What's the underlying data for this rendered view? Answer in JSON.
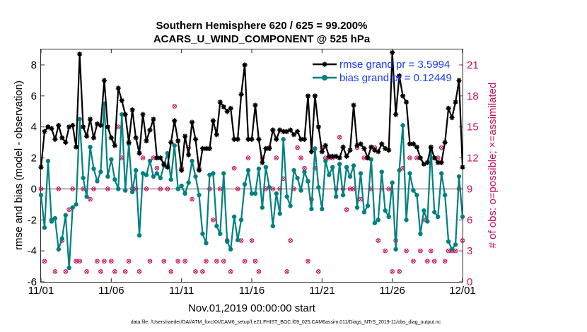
{
  "chart_data": {
    "type": "line",
    "title_line1": "Southern Hemisphere 620 / 625 = 99.200%",
    "title_line2": "ACARS_U_WIND_COMPONENT @ 525 hPa",
    "xlabel": "Nov.01,2019 00:00:00 start",
    "ylabel_left": "rmse and bias (model - observation)",
    "ylabel_right": "# of obs: o=possible; ×=assimilated",
    "footnote": "data file: /Users/raeder/DAI/ATM_forcXX/CAM6_setup/f.e21.FHIST_BGC.f09_025.CAM6assim.011/Diags_NTrS_2019-11/obs_diag_output.nc",
    "xlim": [
      1,
      31
    ],
    "ylim_left": [
      -6,
      9
    ],
    "ylim_right": [
      0,
      22.5
    ],
    "x_tick_values": [
      1,
      6,
      11,
      16,
      21,
      26,
      31
    ],
    "x_tick_labels": [
      "11/01",
      "11/06",
      "11/11",
      "11/16",
      "11/21",
      "11/26",
      "12/01"
    ],
    "y_left_ticks": [
      -6,
      -4,
      -2,
      0,
      2,
      4,
      6,
      8
    ],
    "y_left_tick_labels": [
      "-6",
      "-4",
      "-2",
      "0",
      "2",
      "4",
      "6",
      "8"
    ],
    "y_right_ticks": [
      0,
      3,
      6,
      9,
      12,
      15,
      18,
      21
    ],
    "y_right_tick_labels": [
      "0",
      "3",
      "6",
      "9",
      "12",
      "15",
      "18",
      "21"
    ],
    "legend": {
      "rmse_label": "rmse grand pr = 3.5994",
      "bias_label": "bias grand pr = 0.12449",
      "position": "top-right"
    },
    "colors": {
      "rmse": "#000000",
      "bias": "#008080",
      "obs": "#c8105a",
      "zero_line": "#b0b0b0"
    },
    "rmse_series": {
      "name": "rmse",
      "x": [
        1.0,
        1.25,
        1.5,
        1.75,
        2.0,
        2.25,
        2.5,
        2.75,
        3.0,
        3.25,
        3.5,
        3.75,
        4.0,
        4.25,
        4.5,
        4.75,
        5.0,
        5.25,
        5.5,
        5.75,
        6.0,
        6.25,
        6.5,
        6.75,
        7.0,
        7.25,
        7.5,
        7.75,
        8.0,
        8.25,
        8.5,
        8.75,
        9.0,
        9.25,
        9.5,
        9.75,
        10.0,
        10.25,
        10.5,
        10.75,
        11.0,
        11.25,
        11.5,
        11.75,
        12.0,
        12.25,
        12.5,
        12.75,
        13.0,
        13.25,
        13.5,
        13.75,
        14.0,
        14.25,
        14.5,
        14.75,
        15.0,
        15.25,
        15.5,
        15.75,
        16.0,
        16.25,
        16.5,
        16.75,
        17.0,
        17.25,
        17.5,
        17.75,
        18.0,
        18.25,
        18.5,
        18.75,
        19.0,
        19.25,
        19.5,
        19.75,
        20.0,
        20.25,
        20.5,
        20.75,
        21.0,
        21.25,
        21.5,
        21.75,
        22.0,
        22.25,
        22.5,
        22.75,
        23.0,
        23.25,
        23.5,
        23.75,
        24.0,
        24.25,
        24.5,
        24.75,
        25.0,
        25.25,
        25.5,
        25.75,
        26.0,
        26.25,
        26.5,
        26.75,
        27.0,
        27.25,
        27.5,
        27.75,
        28.0,
        28.25,
        28.5,
        28.75,
        29.0,
        29.25,
        29.5,
        29.75,
        30.0,
        30.25,
        30.5,
        30.75,
        31.0
      ],
      "y": [
        1.4,
        3.7,
        4.0,
        3.9,
        3.2,
        4.1,
        3.3,
        3.0,
        4.0,
        4.1,
        2.7,
        8.7,
        4.0,
        3.4,
        4.5,
        3.3,
        4.2,
        4.1,
        7.0,
        4.0,
        3.3,
        2.8,
        6.5,
        5.7,
        4.8,
        3.0,
        5.1,
        3.3,
        2.3,
        4.8,
        3.1,
        3.8,
        4.5,
        2.0,
        2.0,
        1.6,
        1.4,
        3.0,
        4.4,
        3.1,
        1.2,
        3.4,
        2.2,
        4.3,
        3.2,
        1.2,
        2.6,
        2.6,
        2.6,
        4.4,
        3.5,
        5.6,
        5.3,
        5.0,
        5.2,
        3.2,
        3.2,
        6.1,
        8.0,
        3.2,
        3.2,
        5.4,
        3.2,
        1.7,
        2.6,
        2.6,
        3.8,
        3.2,
        3.8,
        3.7,
        3.7,
        3.8,
        3.5,
        3.7,
        3.2,
        3.2,
        6.0,
        2.4,
        6.0,
        4.0,
        2.4,
        2.8,
        2.1,
        2.1,
        2.1,
        2.0,
        2.7,
        2.1,
        2.5,
        5.4,
        2.8,
        2.9,
        2.6,
        2.0,
        2.7,
        2.5,
        2.4,
        2.9,
        2.6,
        2.5,
        8.8,
        4.8,
        7.3,
        6.0,
        5.6,
        2.9,
        2.9,
        2.7,
        2.0,
        1.6,
        1.7,
        2.7,
        2.0,
        1.7,
        1.7,
        3.0,
        5.2,
        4.6,
        5.6,
        7.0,
        1.4
      ],
      "description": "Black line with star markers"
    },
    "bias_series": {
      "name": "bias",
      "x": [
        1.0,
        1.25,
        1.5,
        1.75,
        2.0,
        2.25,
        2.5,
        2.75,
        3.0,
        3.25,
        3.5,
        3.75,
        4.0,
        4.25,
        4.5,
        4.75,
        5.0,
        5.25,
        5.5,
        5.75,
        6.0,
        6.25,
        6.5,
        6.75,
        7.0,
        7.25,
        7.5,
        7.75,
        8.0,
        8.25,
        8.5,
        8.75,
        9.0,
        9.25,
        9.5,
        9.75,
        10.0,
        10.25,
        10.5,
        10.75,
        11.0,
        11.25,
        11.5,
        11.75,
        12.0,
        12.25,
        12.5,
        12.75,
        13.0,
        13.25,
        13.5,
        13.75,
        14.0,
        14.25,
        14.5,
        14.75,
        15.0,
        15.25,
        15.5,
        15.75,
        16.0,
        16.25,
        16.5,
        16.75,
        17.0,
        17.25,
        17.5,
        17.75,
        18.0,
        18.25,
        18.5,
        18.75,
        19.0,
        19.25,
        19.5,
        19.75,
        20.0,
        20.25,
        20.5,
        20.75,
        21.0,
        21.25,
        21.5,
        21.75,
        22.0,
        22.25,
        22.5,
        22.75,
        23.0,
        23.25,
        23.5,
        23.75,
        24.0,
        24.25,
        24.5,
        24.75,
        25.0,
        25.25,
        25.5,
        25.75,
        26.0,
        26.25,
        26.5,
        26.75,
        27.0,
        27.25,
        27.5,
        27.75,
        28.0,
        28.25,
        28.5,
        28.75,
        29.0,
        29.25,
        29.5,
        29.75,
        30.0,
        30.25,
        30.5,
        30.75,
        31.0
      ],
      "y": [
        -0.4,
        -2.5,
        1.8,
        -2.1,
        -1.9,
        -3.9,
        -3.2,
        -1.7,
        -5.1,
        -1.2,
        -1.0,
        4.5,
        0.7,
        -0.5,
        2.7,
        1.3,
        0.5,
        1.1,
        5.5,
        0.8,
        1.9,
        0.6,
        0.0,
        4.8,
        -0.1,
        2.9,
        -0.2,
        1.2,
        -3.0,
        1.0,
        0.9,
        1.8,
        0.8,
        1.0,
        0.7,
        1.5,
        2.3,
        0.6,
        2.8,
        0.0,
        0.2,
        -0.3,
        0.4,
        1.8,
        0.8,
        -0.4,
        -2.9,
        -3.5,
        0.9,
        1.0,
        -2.4,
        -2.9,
        1.0,
        -3.4,
        -3.9,
        -1.8,
        -3.3,
        -2.0,
        0.3,
        1.2,
        -0.3,
        -0.3,
        1.3,
        -1.2,
        1.4,
        0.1,
        -2.4,
        -0.3,
        -1.6,
        3.2,
        -0.5,
        -1.1,
        1.2,
        0.7,
        -0.1,
        1.1,
        0.5,
        -1.3,
        2.6,
        0.1,
        -1.3,
        1.8,
        0.9,
        1.4,
        -0.5,
        1.6,
        -0.4,
        1.4,
        0.8,
        1.5,
        -1.2,
        1.0,
        -1.5,
        -1.1,
        1.9,
        -2.2,
        -2.0,
        1.1,
        -1.4,
        -1.8,
        0.4,
        -3.9,
        1.2,
        4.1,
        -2.0,
        1.0,
        -0.1,
        -0.4,
        -2.9,
        -1.4,
        -2.1,
        2.6,
        -1.5,
        -1.8,
        1.0,
        -0.4,
        -3.4,
        -3.9,
        -3.6,
        0.8,
        -1.8
      ],
      "description": "Teal line with filled circle markers"
    },
    "obs_points": {
      "name": "# of obs",
      "axis": "right",
      "x": [
        1.0,
        1.25,
        1.5,
        1.75,
        2.0,
        2.25,
        2.5,
        2.75,
        3.0,
        3.25,
        3.5,
        3.75,
        4.0,
        4.25,
        4.5,
        4.75,
        5.0,
        5.25,
        5.5,
        5.75,
        6.0,
        6.25,
        6.5,
        6.75,
        7.0,
        7.25,
        7.5,
        7.75,
        8.0,
        8.25,
        8.5,
        8.75,
        9.0,
        9.25,
        9.5,
        9.75,
        10.0,
        10.25,
        10.5,
        10.75,
        11.0,
        11.25,
        11.5,
        11.75,
        12.0,
        12.25,
        12.5,
        12.75,
        13.0,
        13.25,
        13.5,
        13.75,
        14.0,
        14.25,
        14.5,
        14.75,
        15.0,
        15.25,
        15.5,
        15.75,
        16.0,
        16.25,
        16.5,
        16.75,
        17.0,
        17.25,
        17.5,
        17.75,
        18.0,
        18.25,
        18.5,
        18.75,
        19.0,
        19.25,
        19.5,
        19.75,
        20.0,
        20.25,
        20.5,
        20.75,
        21.0,
        21.25,
        21.5,
        21.75,
        22.0,
        22.25,
        22.5,
        22.75,
        23.0,
        23.25,
        23.5,
        23.75,
        24.0,
        24.25,
        24.5,
        24.75,
        25.0,
        25.25,
        25.5,
        25.75,
        26.0,
        26.25,
        26.5,
        26.75,
        27.0,
        27.25,
        27.5,
        27.75,
        28.0,
        28.25,
        28.5,
        28.75,
        29.0,
        29.25,
        29.5,
        29.75,
        30.0,
        30.25,
        30.5,
        30.75,
        31.0
      ],
      "y": [
        9,
        2,
        15,
        6,
        1,
        9,
        4,
        1,
        7,
        9,
        2,
        2,
        9,
        1,
        8,
        9,
        2,
        1,
        2,
        9,
        2,
        1,
        15,
        12,
        1,
        2,
        9,
        9,
        1,
        12,
        9,
        2,
        12,
        11,
        9,
        2,
        9,
        1,
        17,
        2,
        11,
        2,
        13,
        8,
        1,
        11,
        1,
        2,
        9,
        6,
        2,
        9,
        2,
        4,
        1,
        11,
        9,
        4,
        2,
        12,
        4,
        2,
        1,
        12,
        9,
        13,
        9,
        12,
        9,
        10,
        1,
        4,
        9,
        13,
        12,
        11,
        2,
        8,
        11,
        1,
        13,
        12,
        12,
        12,
        9,
        14,
        9,
        7,
        9,
        9,
        13,
        8,
        12,
        12,
        9,
        13,
        4,
        9,
        3,
        9,
        1,
        4,
        1,
        11,
        3,
        12,
        2,
        12,
        3,
        6,
        2,
        3,
        2,
        12,
        13,
        2,
        3,
        3,
        3,
        9,
        4
      ]
    }
  }
}
